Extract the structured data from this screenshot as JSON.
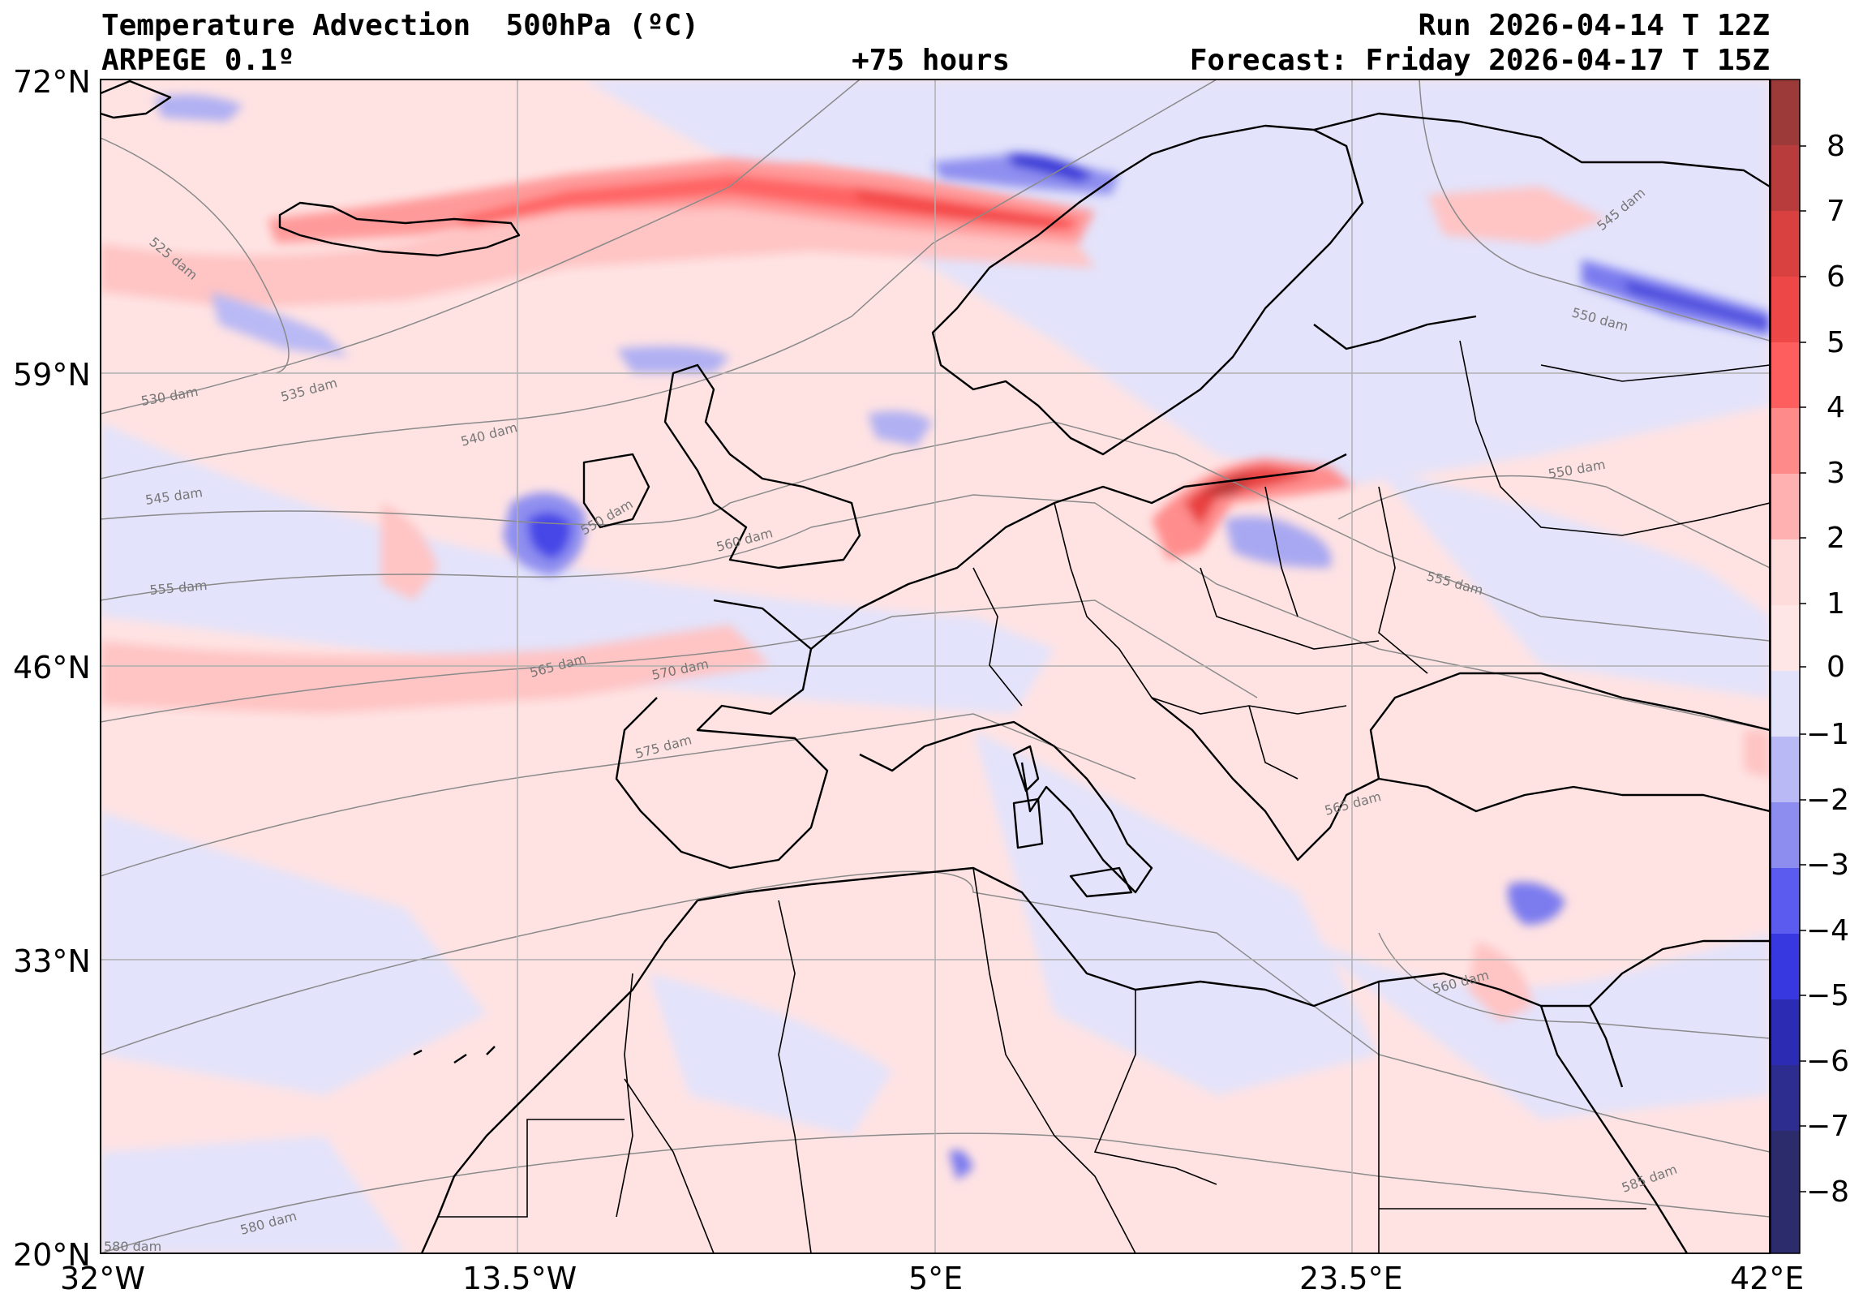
{
  "header": {
    "title": "Temperature Advection  500hPa (ºC)",
    "model": "ARPEGE 0.1º",
    "lead_time": "+75 hours",
    "run": "Run 2026-04-14 T 12Z",
    "forecast": "Forecast: Friday 2026-04-17 T 15Z"
  },
  "latitude_labels": [
    "72°N",
    "59°N",
    "46°N",
    "33°N",
    "20°N"
  ],
  "longitude_labels": [
    "32°W",
    "13.5°W",
    "5°E",
    "23.5°E",
    "42°E"
  ],
  "colorbar": {
    "labels": [
      "8",
      "7",
      "6",
      "5",
      "4",
      "3",
      "2",
      "1",
      "0",
      "−1",
      "−2",
      "−3",
      "−4",
      "−5",
      "−6",
      "−7",
      "−8"
    ],
    "colors": [
      "#9c3a3a",
      "#b83c3c",
      "#d94040",
      "#ee4747",
      "#ff5e5e",
      "#ff8a8a",
      "#ffb0b0",
      "#ffdcdc",
      "#ffe6e6",
      "#e2e2fb",
      "#b9b9f5",
      "#8d8df0",
      "#5b5bf0",
      "#3838e0",
      "#2b2bb4",
      "#2d2d8f",
      "#2c2c6c"
    ]
  },
  "contour_labels": [
    "525 dam",
    "530 dam",
    "535 dam",
    "540 dam",
    "545 dam",
    "550 dam",
    "555 dam",
    "560 dam",
    "565 dam",
    "570 dam",
    "575 dam",
    "580 dam",
    "585 dam",
    "545 dam",
    "550 dam",
    "550 dam",
    "555 dam",
    "560 dam",
    "565 dam",
    "580 dam"
  ],
  "colors": {
    "warm": "#ffd6d6",
    "cold": "#e2e2fb",
    "coast": "#000000",
    "grid": "#b0b0b0",
    "contour": "#8a8a8a"
  }
}
